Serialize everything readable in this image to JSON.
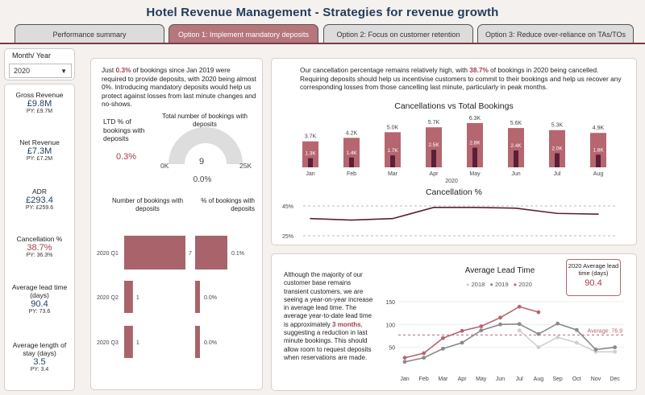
{
  "title": "Hotel Revenue Management - Strategies for revenue growth",
  "tabs": [
    {
      "label": "Performance summary"
    },
    {
      "label": "Option 1: Implement mandatory deposits"
    },
    {
      "label": "Option 2: Focus on customer retention"
    },
    {
      "label": "Option 3: Reduce over-reliance on TAs/TOs"
    }
  ],
  "filter": {
    "label": "Month/ Year",
    "value": "2020"
  },
  "kpis": {
    "gross_revenue": {
      "title": "Gross Revenue",
      "value": "£9.8M",
      "py": "PY: £9.7M"
    },
    "net_revenue": {
      "title": "Net Revenue",
      "value": "£7.3M",
      "py": "PY: £7.2M"
    },
    "adr": {
      "title": "ADR",
      "value": "£293.4",
      "py": "PY: £259.6"
    },
    "cancellation": {
      "title": "Cancellation %",
      "value": "38.7%",
      "py": "PY: 36.3%"
    },
    "lead_time": {
      "title": "Average lead time (days)",
      "value": "90.4",
      "py": "PY: 73.6"
    },
    "stay_length": {
      "title": "Average length of stay (days)",
      "value": "3.5",
      "py": "PY: 3.4"
    }
  },
  "deposits": {
    "intro_pre": "Just ",
    "intro_hl": "0.3%",
    "intro_post": " of bookings since Jan 2019 were required to provide deposits, with 2020 being almost 0%. Introducing mandatory deposits would help us protect against losses from last minute changes and no-shows.",
    "ltd_label": "LTD % of bookings with deposits",
    "ltd_value": "0.3%",
    "gauge_title": "Total number of bookings with deposits",
    "gauge_value": "9",
    "gauge_pct": "0.0%",
    "gauge_min": "0K",
    "gauge_max": "25K",
    "bars_title_left": "Number of bookings with deposits",
    "bars_title_right": "% of bookings with deposits",
    "quarters": [
      {
        "label": "2020 Q1",
        "count": 7,
        "count_label": "7",
        "pct": 0.1,
        "pct_label": "0.1%"
      },
      {
        "label": "2020 Q2",
        "count": 1,
        "count_label": "1",
        "pct": 0.0,
        "pct_label": "0.0%"
      },
      {
        "label": "2020 Q3",
        "count": 1,
        "count_label": "1",
        "pct": 0.0,
        "pct_label": "0.0%"
      }
    ]
  },
  "cancellations": {
    "intro_pre": "Our cancellation percentage remains relatively high, with ",
    "intro_hl": "38.7%",
    "intro_post": " of bookings in 2020 being cancelled. Requiring deposits should help us incentivise customers to commit to their bookings and help us recover any corresponding losses from those cancelling last minute, particularly in peak months.",
    "chart_title": "Cancellations vs Total Bookings",
    "year_label": "2020",
    "pct_title": "Cancellation %",
    "pct_ticks": [
      "45%",
      "25%"
    ]
  },
  "lead_time_section": {
    "text_pre": "Although the majority of our customer base remains transient customers, we are seeing a year-on-year increase in average lead time. The average year-to-date lead time is approximately ",
    "text_hl": "3 months",
    "text_post": ", suggesting a reduction in last minute bookings. This should allow room to request deposits when reservations are made.",
    "chart_title": "Average Lead Time",
    "avg_box_title": "2020 Average lead time (days)",
    "avg_box_value": "90.4",
    "average_label": "Average: 76.9"
  },
  "chart_data": [
    {
      "type": "bar",
      "title": "Cancellations vs Total Bookings",
      "categories": [
        "Jan",
        "Feb",
        "Mar",
        "Apr",
        "May",
        "Jun",
        "Jul",
        "Aug"
      ],
      "series": [
        {
          "name": "Total bookings",
          "values": [
            3.7,
            4.2,
            5.0,
            5.7,
            6.3,
            5.6,
            5.3,
            4.9
          ],
          "labels": [
            "3.7K",
            "4.2K",
            "5.0K",
            "5.7K",
            "6.3K",
            "5.6K",
            "5.3K",
            "4.9K"
          ]
        },
        {
          "name": "Cancellations",
          "values": [
            1.3,
            1.4,
            1.7,
            2.5,
            2.8,
            2.4,
            2.0,
            1.8
          ],
          "labels": [
            "1.3K",
            "1.4K",
            "1.7K",
            "2.5K",
            "2.8K",
            "2.4K",
            "2.0K",
            "1.8K"
          ]
        }
      ],
      "xlabel": "2020",
      "colors": {
        "total": "#b5666f",
        "cancel": "#5b1f37"
      }
    },
    {
      "type": "line",
      "title": "Cancellation %",
      "categories": [
        "Jan",
        "Feb",
        "Mar",
        "Apr",
        "May",
        "Jun",
        "Jul",
        "Aug"
      ],
      "values": [
        36.5,
        35.5,
        36.5,
        44.0,
        44.0,
        43.5,
        40.0,
        39.5
      ],
      "ylim": [
        25,
        45
      ],
      "color": "#5b1f37"
    },
    {
      "type": "line",
      "title": "Average Lead Time",
      "categories": [
        "Jan",
        "Feb",
        "Mar",
        "Apr",
        "May",
        "Jun",
        "Jul",
        "Aug",
        "Sep",
        "Oct",
        "Nov",
        "Dec"
      ],
      "ylim": [
        0,
        150
      ],
      "yticks": [
        "50",
        "100",
        "150"
      ],
      "average": 76.9,
      "series": [
        {
          "name": "2018",
          "color": "#cfcfcf",
          "values": [
            null,
            null,
            null,
            null,
            null,
            null,
            87,
            50,
            72,
            60,
            40,
            40
          ]
        },
        {
          "name": "2019",
          "color": "#8a8a8a",
          "values": [
            18,
            27,
            47,
            60,
            87,
            100,
            101,
            79,
            102,
            88,
            45,
            50
          ]
        },
        {
          "name": "2020",
          "color": "#b5666f",
          "values": [
            27,
            37,
            70,
            86,
            96,
            115,
            139,
            127,
            null,
            null,
            null,
            null
          ]
        }
      ]
    }
  ]
}
